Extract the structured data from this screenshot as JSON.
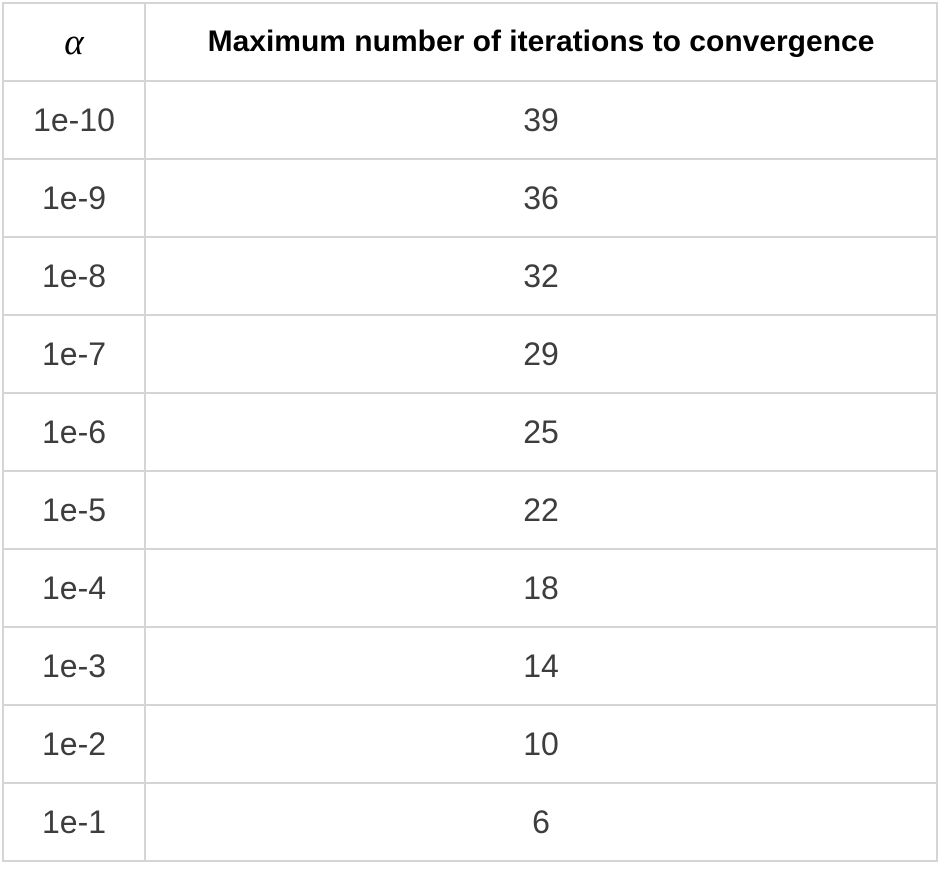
{
  "chart_data": {
    "type": "table",
    "columns": [
      "α",
      "Maximum number of iterations to convergence"
    ],
    "x": [
      "1e-10",
      "1e-9",
      "1e-8",
      "1e-7",
      "1e-6",
      "1e-5",
      "1e-4",
      "1e-3",
      "1e-2",
      "1e-1"
    ],
    "values": [
      39,
      36,
      32,
      29,
      25,
      22,
      18,
      14,
      10,
      6
    ],
    "title": "",
    "xlabel": "α",
    "ylabel": "Maximum number of iterations to convergence",
    "legend": "none",
    "grid": "full-borders"
  },
  "table": {
    "header": {
      "alpha_label": "α",
      "iterations_label": "Maximum number of iterations to convergence"
    },
    "rows": [
      {
        "alpha": "1e-10",
        "iterations": "39"
      },
      {
        "alpha": "1e-9",
        "iterations": "36"
      },
      {
        "alpha": "1e-8",
        "iterations": "32"
      },
      {
        "alpha": "1e-7",
        "iterations": "29"
      },
      {
        "alpha": "1e-6",
        "iterations": "25"
      },
      {
        "alpha": "1e-5",
        "iterations": "22"
      },
      {
        "alpha": "1e-4",
        "iterations": "18"
      },
      {
        "alpha": "1e-3",
        "iterations": "14"
      },
      {
        "alpha": "1e-2",
        "iterations": "10"
      },
      {
        "alpha": "1e-1",
        "iterations": "6"
      }
    ]
  },
  "colors": {
    "border": "#d5d5d5",
    "header_text": "#000000",
    "cell_text": "#3d3d3d",
    "background": "#ffffff"
  }
}
